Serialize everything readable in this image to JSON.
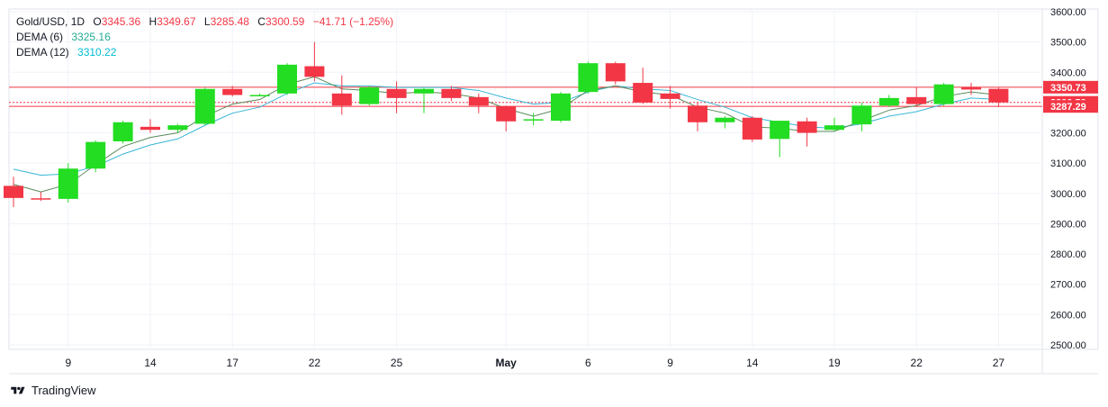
{
  "legend": {
    "symbol": "Gold/USD",
    "interval": "1D",
    "o_label": "O",
    "o_value": "3345.36",
    "h_label": "H",
    "h_value": "3349.67",
    "l_label": "L",
    "l_value": "3285.48",
    "c_label": "C",
    "c_value": "3300.59",
    "change": "−41.71 (−1.25%)",
    "dema6_label": "DEMA (6)",
    "dema6_value": "3325.16",
    "dema12_label": "DEMA (12)",
    "dema12_value": "3310.22"
  },
  "brand": {
    "name": "TradingView"
  },
  "colors": {
    "up": "#22dd22",
    "down": "#f23645",
    "dema6": "#5a8a5a",
    "dema12": "#37b6d6",
    "grid": "#f0f3fa"
  },
  "chart_data": {
    "type": "candlestick",
    "ylim": [
      2470,
      3610
    ],
    "y_ticks": [
      "3600.00",
      "3500.00",
      "3400.00",
      "3300.00",
      "3200.00",
      "3100.00",
      "3000.00",
      "2900.00",
      "2800.00",
      "2700.00",
      "2600.00",
      "2500.00"
    ],
    "x_ticks": [
      {
        "label": "9",
        "index": 2
      },
      {
        "label": "14",
        "index": 5
      },
      {
        "label": "17",
        "index": 8
      },
      {
        "label": "22",
        "index": 11
      },
      {
        "label": "25",
        "index": 14
      },
      {
        "label": "May",
        "index": 18
      },
      {
        "label": "6",
        "index": 21
      },
      {
        "label": "9",
        "index": 24
      },
      {
        "label": "14",
        "index": 27
      },
      {
        "label": "19",
        "index": 30
      },
      {
        "label": "22",
        "index": 33
      },
      {
        "label": "27",
        "index": 36
      }
    ],
    "candles": [
      {
        "o": 3025,
        "h": 3055,
        "l": 2955,
        "c": 2985
      },
      {
        "o": 2984,
        "h": 3005,
        "l": 2975,
        "c": 2980
      },
      {
        "o": 2982,
        "h": 3100,
        "l": 2970,
        "c": 3082
      },
      {
        "o": 3082,
        "h": 3175,
        "l": 3070,
        "c": 3170
      },
      {
        "o": 3172,
        "h": 3240,
        "l": 3165,
        "c": 3235
      },
      {
        "o": 3220,
        "h": 3245,
        "l": 3200,
        "c": 3210
      },
      {
        "o": 3210,
        "h": 3230,
        "l": 3200,
        "c": 3225
      },
      {
        "o": 3230,
        "h": 3350,
        "l": 3225,
        "c": 3345
      },
      {
        "o": 3345,
        "h": 3355,
        "l": 3320,
        "c": 3325
      },
      {
        "o": 3325,
        "h": 3330,
        "l": 3322,
        "c": 3325
      },
      {
        "o": 3330,
        "h": 3430,
        "l": 3325,
        "c": 3425
      },
      {
        "o": 3420,
        "h": 3500,
        "l": 3370,
        "c": 3385
      },
      {
        "o": 3330,
        "h": 3390,
        "l": 3260,
        "c": 3290
      },
      {
        "o": 3295,
        "h": 3355,
        "l": 3290,
        "c": 3350
      },
      {
        "o": 3345,
        "h": 3370,
        "l": 3265,
        "c": 3315
      },
      {
        "o": 3330,
        "h": 3350,
        "l": 3265,
        "c": 3345
      },
      {
        "o": 3345,
        "h": 3355,
        "l": 3305,
        "c": 3315
      },
      {
        "o": 3318,
        "h": 3330,
        "l": 3265,
        "c": 3290
      },
      {
        "o": 3288,
        "h": 3290,
        "l": 3205,
        "c": 3238
      },
      {
        "o": 3242,
        "h": 3265,
        "l": 3225,
        "c": 3245
      },
      {
        "o": 3240,
        "h": 3335,
        "l": 3235,
        "c": 3330
      },
      {
        "o": 3335,
        "h": 3435,
        "l": 3330,
        "c": 3430
      },
      {
        "o": 3430,
        "h": 3435,
        "l": 3360,
        "c": 3370
      },
      {
        "o": 3365,
        "h": 3415,
        "l": 3295,
        "c": 3300
      },
      {
        "o": 3330,
        "h": 3355,
        "l": 3280,
        "c": 3312
      },
      {
        "o": 3290,
        "h": 3300,
        "l": 3205,
        "c": 3235
      },
      {
        "o": 3235,
        "h": 3255,
        "l": 3215,
        "c": 3250
      },
      {
        "o": 3250,
        "h": 3255,
        "l": 3170,
        "c": 3178
      },
      {
        "o": 3180,
        "h": 3240,
        "l": 3120,
        "c": 3240
      },
      {
        "o": 3238,
        "h": 3250,
        "l": 3155,
        "c": 3200
      },
      {
        "o": 3210,
        "h": 3250,
        "l": 3205,
        "c": 3225
      },
      {
        "o": 3228,
        "h": 3300,
        "l": 3205,
        "c": 3290
      },
      {
        "o": 3290,
        "h": 3325,
        "l": 3285,
        "c": 3315
      },
      {
        "o": 3318,
        "h": 3350,
        "l": 3290,
        "c": 3295
      },
      {
        "o": 3295,
        "h": 3365,
        "l": 3290,
        "c": 3360
      },
      {
        "o": 3352,
        "h": 3365,
        "l": 3325,
        "c": 3343
      },
      {
        "o": 3345.36,
        "h": 3349.67,
        "l": 3285.48,
        "c": 3300.59
      }
    ],
    "dema6": [
      3030,
      3005,
      3030,
      3095,
      3155,
      3185,
      3200,
      3255,
      3295,
      3310,
      3360,
      3385,
      3345,
      3340,
      3330,
      3335,
      3330,
      3315,
      3280,
      3255,
      3280,
      3340,
      3355,
      3335,
      3325,
      3285,
      3265,
      3220,
      3215,
      3205,
      3205,
      3240,
      3275,
      3290,
      3320,
      3335,
      3325.16
    ],
    "dema12": [
      3080,
      3060,
      3065,
      3090,
      3130,
      3160,
      3180,
      3225,
      3265,
      3285,
      3330,
      3365,
      3355,
      3355,
      3350,
      3350,
      3350,
      3340,
      3315,
      3295,
      3300,
      3335,
      3355,
      3345,
      3340,
      3310,
      3285,
      3250,
      3235,
      3220,
      3215,
      3230,
      3255,
      3270,
      3295,
      3315,
      3310.22
    ],
    "h_lines": [
      {
        "value": 3350.73,
        "label": "3350.73",
        "color": "#f23645",
        "style": "solid"
      },
      {
        "value": 3300.59,
        "label": "3300.59",
        "color": "#f23645",
        "style": "dotted"
      },
      {
        "value": 3287.29,
        "label": "3287.29",
        "color": "#f23645",
        "style": "solid"
      }
    ]
  }
}
